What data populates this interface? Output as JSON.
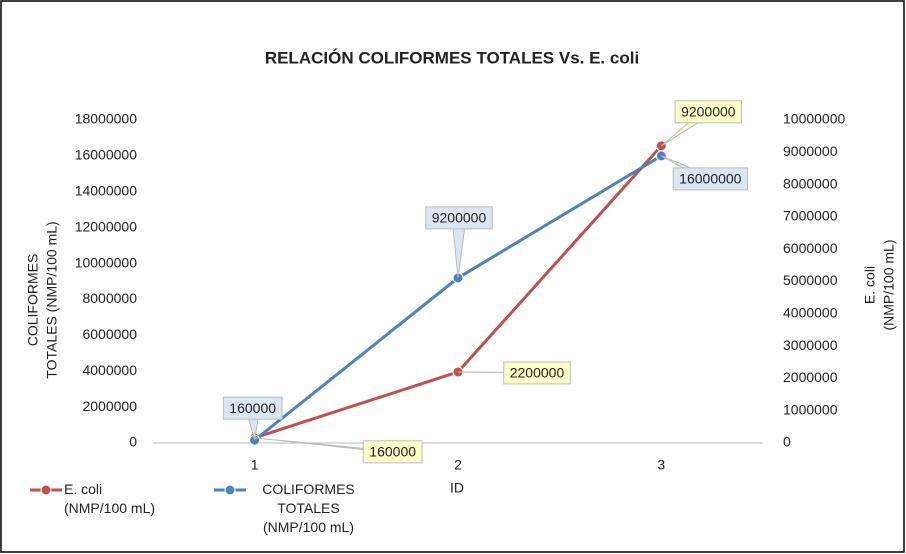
{
  "chart_data": {
    "type": "line",
    "title": "RELACIÓN COLIFORMES TOTALES Vs. E. coli",
    "xlabel": "ID",
    "ylabel": [
      "COLIFORMES",
      "TOTALES (NMP/100 mL)"
    ],
    "y2label": [
      "E. coli",
      "(NMP/100 mL)"
    ],
    "categories": [
      "1",
      "2",
      "3"
    ],
    "ylim": [
      0,
      18000000
    ],
    "yticks": [
      0,
      2000000,
      4000000,
      6000000,
      8000000,
      10000000,
      12000000,
      14000000,
      16000000,
      18000000
    ],
    "y2lim": [
      0,
      10000000
    ],
    "y2ticks": [
      0,
      1000000,
      2000000,
      3000000,
      4000000,
      5000000,
      6000000,
      7000000,
      8000000,
      9000000,
      10000000
    ],
    "series": [
      {
        "name": "E. coli (NMP/100 mL)",
        "color": "#c0504d",
        "axis": "y2",
        "label_fill": "#ffffc8",
        "values": [
          160000,
          2200000,
          9200000
        ]
      },
      {
        "name": "COLIFORMES TOTALES (NMP/100 mL)",
        "color": "#4f81bd",
        "label_fill": "#dce6f2",
        "values": [
          160000,
          9200000,
          16000000
        ]
      }
    ]
  }
}
